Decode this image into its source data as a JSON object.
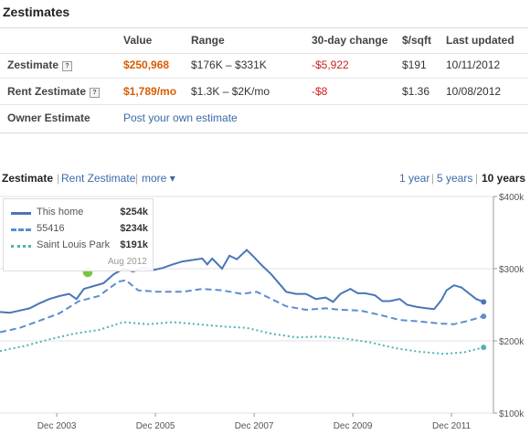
{
  "panel": {
    "title": "Zestimates"
  },
  "table": {
    "headers": [
      "Value",
      "Range",
      "30-day change",
      "$/sqft",
      "Last updated"
    ],
    "rows": [
      {
        "label": "Zestimate",
        "help": "?",
        "value": "$250,968",
        "range": "$176K – $331K",
        "change": "-$5,922",
        "sqft": "$191",
        "updated": "10/11/2012"
      },
      {
        "label": "Rent Zestimate",
        "help": "?",
        "value": "$1,789/mo",
        "range": "$1.3K – $2K/mo",
        "change": "-$8",
        "sqft": "$1.36",
        "updated": "10/08/2012"
      }
    ],
    "owner": {
      "label": "Owner Estimate",
      "link": "Post your own estimate"
    }
  },
  "tabs": {
    "zestimate": "Zestimate",
    "rent": "Rent Zestimate",
    "more": "more",
    "more_arrow": "▾",
    "range_1y": "1 year",
    "range_5y": "5 years",
    "range_10y": "10 years"
  },
  "legend": {
    "date": "Aug 2012",
    "items": [
      {
        "name": "This home",
        "value": "$254k"
      },
      {
        "name": "55416",
        "value": "$234k"
      },
      {
        "name": "Saint Louis Park",
        "value": "$191k"
      }
    ]
  },
  "colors": {
    "this_home": "#4a76b8",
    "zip": "#5b8ed0",
    "city": "#4fb3b0",
    "orange": "#d85c00",
    "red": "#cc2222",
    "link": "#3b6aa8"
  },
  "chart_data": {
    "type": "line",
    "x_ticks": [
      "Dec 2003",
      "Dec 2005",
      "Dec 2007",
      "Dec 2009",
      "Dec 2011"
    ],
    "y_ticks": [
      "$400k",
      "$300k",
      "$200k",
      "$100k"
    ],
    "ylim": [
      100,
      400
    ],
    "x_range": [
      2002.8,
      2012.8
    ],
    "series": [
      {
        "name": "This home",
        "style": "solid",
        "points": [
          [
            2002.8,
            240
          ],
          [
            2003.0,
            239
          ],
          [
            2003.2,
            242
          ],
          [
            2003.4,
            245
          ],
          [
            2003.6,
            252
          ],
          [
            2003.8,
            258
          ],
          [
            2004.0,
            262
          ],
          [
            2004.2,
            265
          ],
          [
            2004.35,
            258
          ],
          [
            2004.5,
            272
          ],
          [
            2004.7,
            276
          ],
          [
            2004.9,
            280
          ],
          [
            2005.1,
            292
          ],
          [
            2005.3,
            300
          ],
          [
            2005.5,
            296
          ],
          [
            2005.7,
            302
          ],
          [
            2005.9,
            298
          ],
          [
            2006.1,
            301
          ],
          [
            2006.3,
            306
          ],
          [
            2006.5,
            310
          ],
          [
            2006.7,
            312
          ],
          [
            2006.9,
            314
          ],
          [
            2007.0,
            306
          ],
          [
            2007.1,
            314
          ],
          [
            2007.3,
            300
          ],
          [
            2007.45,
            318
          ],
          [
            2007.6,
            313
          ],
          [
            2007.8,
            326
          ],
          [
            2007.95,
            316
          ],
          [
            2008.1,
            305
          ],
          [
            2008.3,
            292
          ],
          [
            2008.45,
            280
          ],
          [
            2008.6,
            268
          ],
          [
            2008.8,
            265
          ],
          [
            2009.0,
            265
          ],
          [
            2009.2,
            258
          ],
          [
            2009.4,
            260
          ],
          [
            2009.55,
            254
          ],
          [
            2009.7,
            265
          ],
          [
            2009.9,
            272
          ],
          [
            2010.05,
            266
          ],
          [
            2010.2,
            266
          ],
          [
            2010.4,
            263
          ],
          [
            2010.55,
            255
          ],
          [
            2010.7,
            255
          ],
          [
            2010.9,
            258
          ],
          [
            2011.05,
            250
          ],
          [
            2011.25,
            247
          ],
          [
            2011.45,
            245
          ],
          [
            2011.6,
            244
          ],
          [
            2011.75,
            257
          ],
          [
            2011.85,
            270
          ],
          [
            2012.0,
            277
          ],
          [
            2012.15,
            274
          ],
          [
            2012.3,
            266
          ],
          [
            2012.45,
            258
          ],
          [
            2012.6,
            254
          ]
        ]
      },
      {
        "name": "55416",
        "style": "dashed",
        "points": [
          [
            2002.8,
            212
          ],
          [
            2003.2,
            218
          ],
          [
            2003.6,
            228
          ],
          [
            2004.0,
            238
          ],
          [
            2004.4,
            255
          ],
          [
            2004.8,
            262
          ],
          [
            2005.2,
            282
          ],
          [
            2005.35,
            284
          ],
          [
            2005.6,
            270
          ],
          [
            2006.0,
            268
          ],
          [
            2006.5,
            268
          ],
          [
            2006.9,
            272
          ],
          [
            2007.3,
            270
          ],
          [
            2007.7,
            265
          ],
          [
            2008.0,
            268
          ],
          [
            2008.3,
            258
          ],
          [
            2008.6,
            248
          ],
          [
            2009.0,
            243
          ],
          [
            2009.4,
            245
          ],
          [
            2009.7,
            243
          ],
          [
            2010.1,
            242
          ],
          [
            2010.5,
            236
          ],
          [
            2010.9,
            229
          ],
          [
            2011.3,
            227
          ],
          [
            2011.7,
            224
          ],
          [
            2012.0,
            223
          ],
          [
            2012.3,
            228
          ],
          [
            2012.6,
            234
          ]
        ]
      },
      {
        "name": "Saint Louis Park",
        "style": "dotted",
        "points": [
          [
            2002.8,
            186
          ],
          [
            2003.3,
            193
          ],
          [
            2003.8,
            202
          ],
          [
            2004.3,
            210
          ],
          [
            2004.8,
            215
          ],
          [
            2005.3,
            226
          ],
          [
            2005.8,
            223
          ],
          [
            2006.3,
            226
          ],
          [
            2006.8,
            223
          ],
          [
            2007.3,
            220
          ],
          [
            2007.8,
            218
          ],
          [
            2008.3,
            210
          ],
          [
            2008.8,
            205
          ],
          [
            2009.3,
            206
          ],
          [
            2009.8,
            203
          ],
          [
            2010.3,
            198
          ],
          [
            2010.8,
            190
          ],
          [
            2011.3,
            185
          ],
          [
            2011.8,
            182
          ],
          [
            2012.2,
            184
          ],
          [
            2012.6,
            191
          ]
        ]
      }
    ]
  }
}
